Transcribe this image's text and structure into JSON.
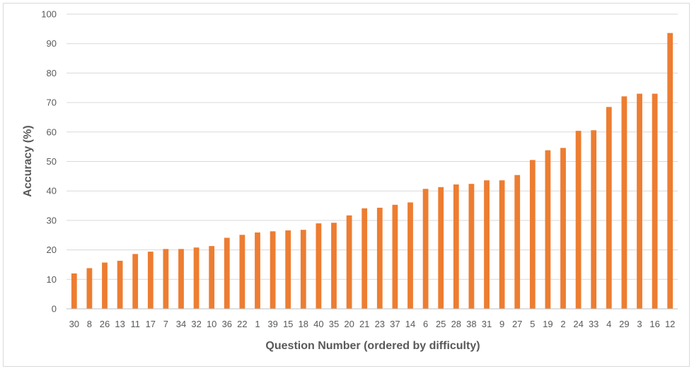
{
  "chart_data": {
    "type": "bar",
    "xlabel": "Question Number (ordered by difficulty)",
    "ylabel": "Accuracy (%)",
    "ylim": [
      0,
      100
    ],
    "yticks": [
      0,
      10,
      20,
      30,
      40,
      50,
      60,
      70,
      80,
      90,
      100
    ],
    "grid": true,
    "bar_color": "#ED7D31",
    "categories": [
      "30",
      "8",
      "26",
      "13",
      "11",
      "17",
      "7",
      "34",
      "32",
      "10",
      "36",
      "22",
      "1",
      "39",
      "15",
      "18",
      "40",
      "35",
      "20",
      "21",
      "23",
      "37",
      "14",
      "6",
      "25",
      "28",
      "38",
      "31",
      "9",
      "27",
      "5",
      "19",
      "2",
      "24",
      "33",
      "4",
      "29",
      "3",
      "16",
      "12"
    ],
    "values": [
      12,
      13.8,
      15.7,
      16.3,
      18.6,
      19.4,
      20.3,
      20.3,
      20.8,
      21.3,
      24.1,
      25.1,
      25.9,
      26.3,
      26.6,
      26.8,
      29.0,
      29.2,
      31.7,
      34.1,
      34.3,
      35.3,
      36.1,
      40.7,
      41.3,
      42.2,
      42.4,
      43.6,
      43.6,
      45.4,
      50.5,
      53.8,
      54.6,
      60.4,
      60.6,
      68.5,
      72.1,
      73.0,
      73.0,
      93.6
    ]
  }
}
